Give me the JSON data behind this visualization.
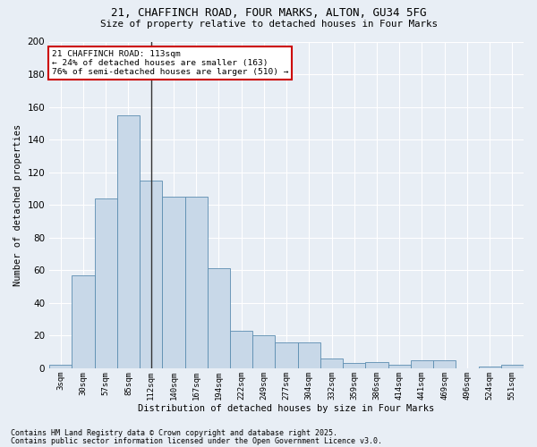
{
  "title1": "21, CHAFFINCH ROAD, FOUR MARKS, ALTON, GU34 5FG",
  "title2": "Size of property relative to detached houses in Four Marks",
  "xlabel": "Distribution of detached houses by size in Four Marks",
  "ylabel": "Number of detached properties",
  "categories": [
    "3sqm",
    "30sqm",
    "57sqm",
    "85sqm",
    "112sqm",
    "140sqm",
    "167sqm",
    "194sqm",
    "222sqm",
    "249sqm",
    "277sqm",
    "304sqm",
    "332sqm",
    "359sqm",
    "386sqm",
    "414sqm",
    "441sqm",
    "469sqm",
    "496sqm",
    "524sqm",
    "551sqm"
  ],
  "values": [
    2,
    57,
    104,
    155,
    115,
    105,
    105,
    61,
    23,
    20,
    16,
    16,
    6,
    3,
    4,
    2,
    5,
    5,
    0,
    1,
    2
  ],
  "bar_color": "#c8d8e8",
  "bar_edge_color": "#5b8db0",
  "vline_x_index": 4,
  "vline_color": "#333333",
  "annotation_text": "21 CHAFFINCH ROAD: 113sqm\n← 24% of detached houses are smaller (163)\n76% of semi-detached houses are larger (510) →",
  "annotation_box_facecolor": "#ffffff",
  "annotation_box_edgecolor": "#cc0000",
  "background_color": "#e8eef5",
  "grid_color": "#ffffff",
  "ylim": [
    0,
    200
  ],
  "yticks": [
    0,
    20,
    40,
    60,
    80,
    100,
    120,
    140,
    160,
    180,
    200
  ],
  "footnote1": "Contains HM Land Registry data © Crown copyright and database right 2025.",
  "footnote2": "Contains public sector information licensed under the Open Government Licence v3.0."
}
